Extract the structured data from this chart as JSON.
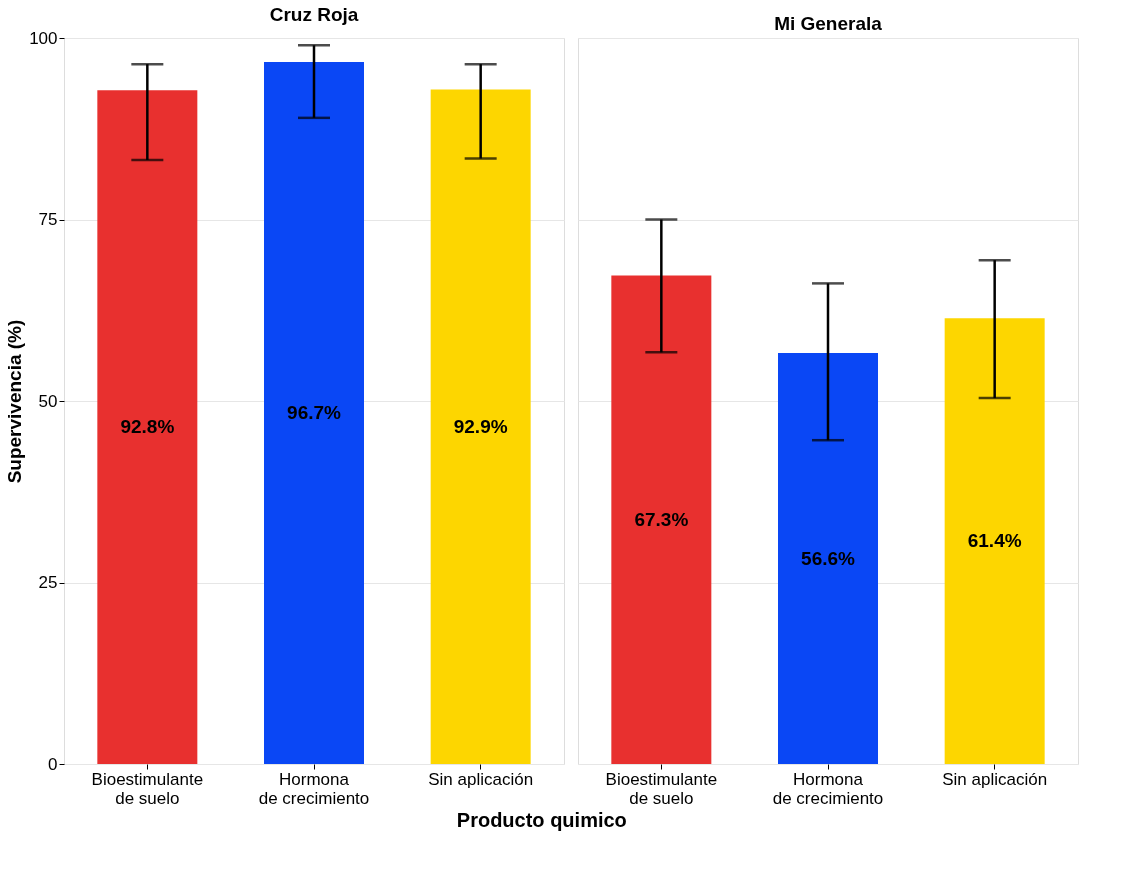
{
  "chart_data": [
    {
      "type": "bar",
      "title": "Cruz Roja",
      "xlabel": "Producto quimico",
      "ylabel": "Supervivencia (%)",
      "categories": [
        "Bioestimulante\nde suelo",
        "Hormona\nde crecimiento",
        "Sin aplicación"
      ],
      "values": [
        92.8,
        96.7,
        92.9
      ],
      "colors": [
        "#e8302f",
        "#0a47f5",
        "#fdd600"
      ],
      "errors": [
        [
          83.2,
          96.4
        ],
        [
          89.0,
          99.0
        ],
        [
          83.4,
          96.4
        ]
      ],
      "value_labels": [
        "92.8%",
        "96.7%",
        "92.9%"
      ],
      "ylim": [
        0,
        100
      ],
      "yticks": [
        0,
        25,
        50,
        75,
        100
      ],
      "grid": "y",
      "legend": false
    },
    {
      "type": "bar",
      "title": "Mi Generala",
      "categories": [
        "Bioestimulante\nde suelo",
        "Hormona\nde crecimiento",
        "Sin aplicación"
      ],
      "values": [
        67.3,
        56.6,
        61.4
      ],
      "colors": [
        "#e8302f",
        "#0a47f5",
        "#fdd600"
      ],
      "errors": [
        [
          56.7,
          75.0
        ],
        [
          44.6,
          66.2
        ],
        [
          50.4,
          69.4
        ]
      ],
      "value_labels": [
        "67.3%",
        "56.6%",
        "61.4%"
      ],
      "ylim": [
        0,
        100
      ],
      "yticks": [
        0,
        25,
        50,
        75,
        100
      ],
      "grid": "y",
      "legend": false,
      "tick_labels": "x"
    }
  ]
}
